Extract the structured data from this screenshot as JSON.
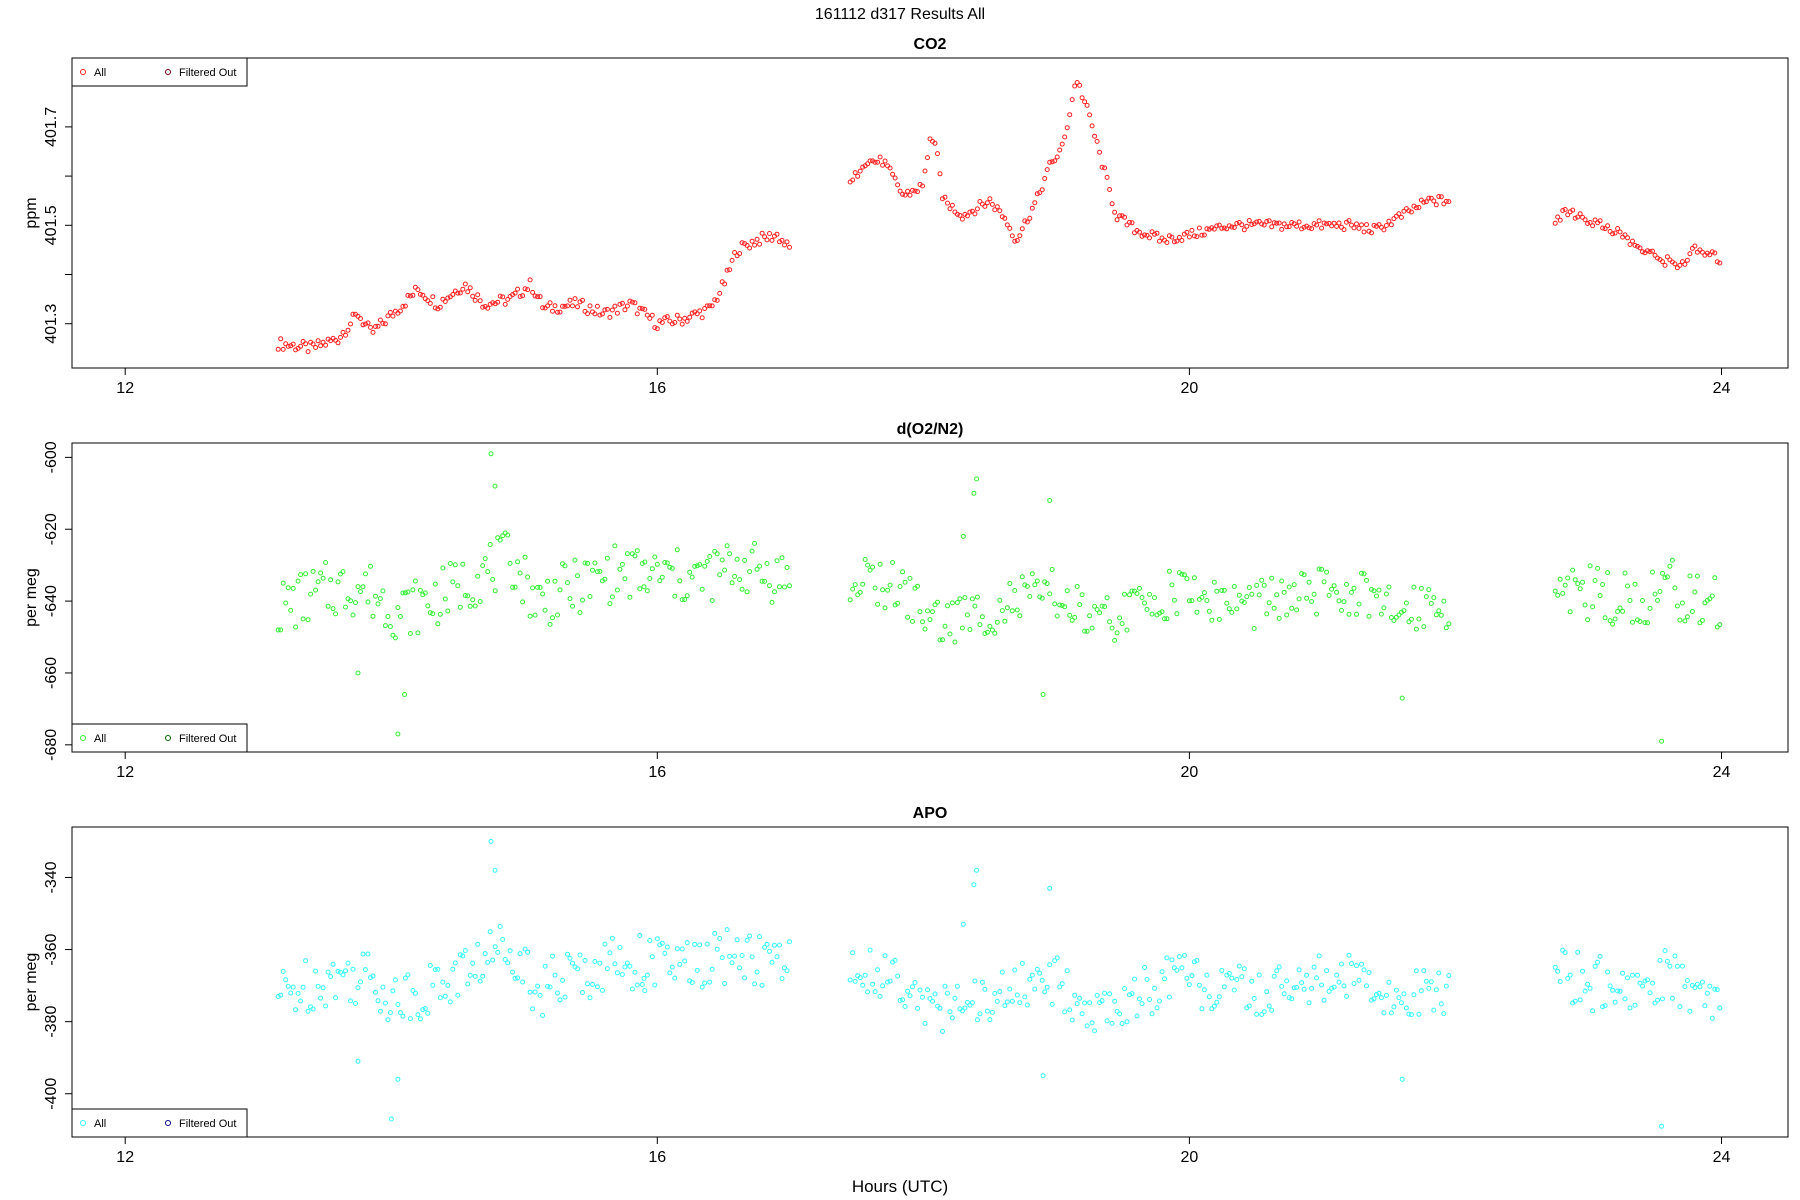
{
  "page_title": "161112   d317   Results All",
  "x_axis_label": "Hours (UTC)",
  "legend_labels": {
    "all": "All",
    "filtered": "Filtered Out"
  },
  "chart_data": [
    {
      "type": "scatter",
      "title": "CO2",
      "ylabel": "ppm",
      "xlabel": "Hours (UTC)",
      "xlim": [
        11.6,
        24.5
      ],
      "ylim": [
        401.21,
        401.84
      ],
      "xticks": [
        12,
        16,
        20,
        24
      ],
      "yticks": [
        401.3,
        401.4,
        401.5,
        401.6,
        401.7
      ],
      "ytick_labels": [
        "401.3",
        "",
        "401.5",
        "",
        "401.7"
      ],
      "grid": false,
      "legend_position": "top-left",
      "colors": {
        "all": "#ff2020",
        "filtered": "#8b0000"
      },
      "segments": [
        {
          "x_start": 13.15,
          "x_end": 17.0,
          "keys": [
            [
              13.15,
              401.26
            ],
            [
              13.4,
              401.25
            ],
            [
              13.6,
              401.27
            ],
            [
              13.75,
              401.32
            ],
            [
              13.85,
              401.28
            ],
            [
              14.05,
              401.33
            ],
            [
              14.2,
              401.37
            ],
            [
              14.35,
              401.34
            ],
            [
              14.55,
              401.38
            ],
            [
              14.7,
              401.34
            ],
            [
              14.9,
              401.35
            ],
            [
              15.05,
              401.38
            ],
            [
              15.15,
              401.33
            ],
            [
              15.4,
              401.34
            ],
            [
              15.6,
              401.32
            ],
            [
              15.8,
              401.34
            ],
            [
              16.0,
              401.3
            ],
            [
              16.2,
              401.31
            ],
            [
              16.4,
              401.33
            ],
            [
              16.5,
              401.38
            ],
            [
              16.6,
              401.45
            ],
            [
              16.75,
              401.47
            ],
            [
              16.9,
              401.48
            ],
            [
              17.0,
              401.45
            ]
          ],
          "noise": 0.012
        },
        {
          "x_start": 17.45,
          "x_end": 21.95,
          "keys": [
            [
              17.45,
              401.58
            ],
            [
              17.55,
              401.63
            ],
            [
              17.7,
              401.63
            ],
            [
              17.85,
              401.56
            ],
            [
              18.0,
              401.58
            ],
            [
              18.05,
              401.68
            ],
            [
              18.1,
              401.65
            ],
            [
              18.15,
              401.55
            ],
            [
              18.3,
              401.52
            ],
            [
              18.5,
              401.55
            ],
            [
              18.6,
              401.52
            ],
            [
              18.7,
              401.47
            ],
            [
              18.85,
              401.55
            ],
            [
              18.95,
              401.62
            ],
            [
              19.05,
              401.66
            ],
            [
              19.15,
              401.8
            ],
            [
              19.25,
              401.72
            ],
            [
              19.35,
              401.62
            ],
            [
              19.45,
              401.52
            ],
            [
              19.6,
              401.49
            ],
            [
              19.8,
              401.47
            ],
            [
              20.0,
              401.48
            ],
            [
              20.3,
              401.5
            ],
            [
              20.6,
              401.5
            ],
            [
              20.9,
              401.5
            ],
            [
              21.2,
              401.5
            ],
            [
              21.4,
              401.49
            ],
            [
              21.6,
              401.52
            ],
            [
              21.8,
              401.55
            ],
            [
              21.95,
              401.55
            ]
          ],
          "noise": 0.01
        },
        {
          "x_start": 22.75,
          "x_end": 24.0,
          "keys": [
            [
              22.75,
              401.51
            ],
            [
              22.85,
              401.53
            ],
            [
              23.0,
              401.51
            ],
            [
              23.2,
              401.49
            ],
            [
              23.4,
              401.45
            ],
            [
              23.55,
              401.43
            ],
            [
              23.7,
              401.42
            ],
            [
              23.8,
              401.45
            ],
            [
              23.9,
              401.44
            ],
            [
              24.0,
              401.43
            ]
          ],
          "noise": 0.01
        }
      ]
    },
    {
      "type": "scatter",
      "title": "d(O2/N2)",
      "ylabel": "per meg",
      "xlabel": "Hours (UTC)",
      "xlim": [
        11.6,
        24.5
      ],
      "ylim": [
        -682,
        -596
      ],
      "xticks": [
        12,
        16,
        20,
        24
      ],
      "yticks": [
        -680,
        -660,
        -640,
        -620,
        -600
      ],
      "ytick_labels": [
        "-680",
        "-660",
        "-640",
        "-620",
        "-600"
      ],
      "grid": false,
      "legend_position": "bottom-left",
      "colors": {
        "all": "#33ee33",
        "filtered": "#006400"
      },
      "segments": [
        {
          "x_start": 13.15,
          "x_end": 17.0,
          "keys": [
            [
              13.15,
              -642
            ],
            [
              13.5,
              -637
            ],
            [
              13.8,
              -636
            ],
            [
              14.05,
              -643
            ],
            [
              14.3,
              -640
            ],
            [
              14.6,
              -634
            ],
            [
              14.9,
              -628
            ],
            [
              15.1,
              -640
            ],
            [
              15.4,
              -636
            ],
            [
              15.7,
              -632
            ],
            [
              16.0,
              -633
            ],
            [
              16.3,
              -634
            ],
            [
              16.6,
              -630
            ],
            [
              17.0,
              -634
            ]
          ],
          "noise": 8,
          "outliers": [
            [
              13.75,
              -660
            ],
            [
              14.05,
              -677
            ],
            [
              14.1,
              -666
            ],
            [
              14.75,
              -599
            ],
            [
              14.78,
              -608
            ],
            [
              15.9,
              -636
            ]
          ]
        },
        {
          "x_start": 17.45,
          "x_end": 21.95,
          "keys": [
            [
              17.45,
              -635
            ],
            [
              17.8,
              -636
            ],
            [
              18.1,
              -646
            ],
            [
              18.4,
              -644
            ],
            [
              18.7,
              -640
            ],
            [
              19.0,
              -638
            ],
            [
              19.3,
              -647
            ],
            [
              19.6,
              -642
            ],
            [
              19.9,
              -637
            ],
            [
              20.2,
              -640
            ],
            [
              20.5,
              -641
            ],
            [
              20.9,
              -638
            ],
            [
              21.2,
              -637
            ],
            [
              21.5,
              -643
            ],
            [
              21.8,
              -640
            ],
            [
              21.95,
              -641
            ]
          ],
          "noise": 7,
          "outliers": [
            [
              18.4,
              -606
            ],
            [
              18.38,
              -610
            ],
            [
              18.9,
              -666
            ],
            [
              18.95,
              -612
            ],
            [
              18.3,
              -622
            ],
            [
              21.6,
              -667
            ]
          ]
        },
        {
          "x_start": 22.75,
          "x_end": 24.0,
          "keys": [
            [
              22.75,
              -634
            ],
            [
              23.0,
              -638
            ],
            [
              23.3,
              -640
            ],
            [
              23.6,
              -636
            ],
            [
              24.0,
              -642
            ]
          ],
          "noise": 8,
          "outliers": [
            [
              23.55,
              -679
            ]
          ]
        }
      ]
    },
    {
      "type": "scatter",
      "title": "APO",
      "ylabel": "per meg",
      "xlabel": "Hours (UTC)",
      "xlim": [
        11.6,
        24.5
      ],
      "ylim": [
        -412,
        -326
      ],
      "xticks": [
        12,
        16,
        20,
        24
      ],
      "yticks": [
        -400,
        -380,
        -360,
        -340
      ],
      "ytick_labels": [
        "-400",
        "-380",
        "-360",
        "-340"
      ],
      "grid": false,
      "legend_position": "bottom-left",
      "colors": {
        "all": "#33ffff",
        "filtered": "#00008b"
      },
      "segments": [
        {
          "x_start": 13.15,
          "x_end": 17.0,
          "keys": [
            [
              13.15,
              -373
            ],
            [
              13.5,
              -368
            ],
            [
              13.8,
              -367
            ],
            [
              14.05,
              -374
            ],
            [
              14.3,
              -371
            ],
            [
              14.6,
              -365
            ],
            [
              14.9,
              -358
            ],
            [
              15.1,
              -371
            ],
            [
              15.4,
              -367
            ],
            [
              15.7,
              -363
            ],
            [
              16.0,
              -364
            ],
            [
              16.3,
              -365
            ],
            [
              16.6,
              -361
            ],
            [
              17.0,
              -365
            ]
          ],
          "noise": 8,
          "outliers": [
            [
              13.75,
              -391
            ],
            [
              14.05,
              -396
            ],
            [
              14.0,
              -407
            ],
            [
              14.75,
              -330
            ],
            [
              14.78,
              -338
            ],
            [
              15.9,
              -368
            ]
          ]
        },
        {
          "x_start": 17.45,
          "x_end": 21.95,
          "keys": [
            [
              17.45,
              -366
            ],
            [
              17.8,
              -367
            ],
            [
              18.1,
              -377
            ],
            [
              18.4,
              -375
            ],
            [
              18.7,
              -371
            ],
            [
              19.0,
              -369
            ],
            [
              19.3,
              -378
            ],
            [
              19.6,
              -373
            ],
            [
              19.9,
              -368
            ],
            [
              20.2,
              -371
            ],
            [
              20.5,
              -372
            ],
            [
              20.9,
              -369
            ],
            [
              21.2,
              -368
            ],
            [
              21.5,
              -374
            ],
            [
              21.8,
              -371
            ],
            [
              21.95,
              -372
            ]
          ],
          "noise": 7,
          "outliers": [
            [
              18.4,
              -338
            ],
            [
              18.38,
              -342
            ],
            [
              18.9,
              -395
            ],
            [
              18.95,
              -343
            ],
            [
              18.3,
              -353
            ],
            [
              21.6,
              -396
            ]
          ]
        },
        {
          "x_start": 22.75,
          "x_end": 24.0,
          "keys": [
            [
              22.75,
              -365
            ],
            [
              23.0,
              -369
            ],
            [
              23.3,
              -371
            ],
            [
              23.6,
              -367
            ],
            [
              24.0,
              -373
            ]
          ],
          "noise": 8,
          "outliers": [
            [
              23.55,
              -409
            ]
          ]
        }
      ]
    }
  ]
}
